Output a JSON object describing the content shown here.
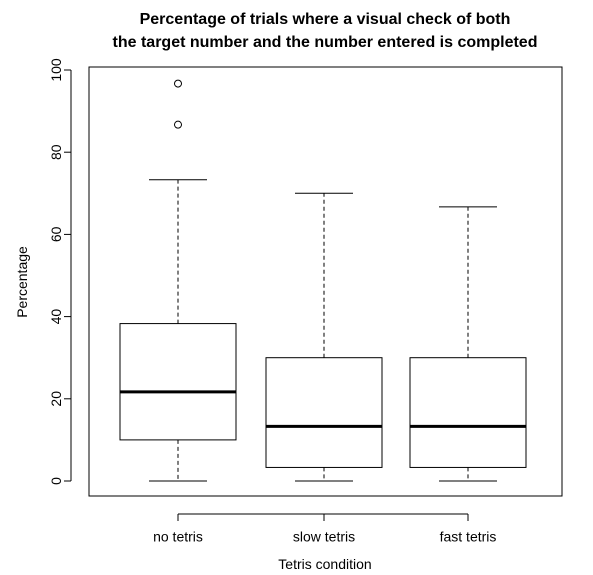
{
  "chart_data": {
    "type": "boxplot",
    "title": "Percentage of trials where a visual check of both the target number and the number entered is completed",
    "title_lines": [
      "Percentage of trials where a visual check of both",
      "the target number and the number entered is completed"
    ],
    "xlabel": "Tetris condition",
    "ylabel": "Percentage",
    "ylim": [
      0,
      100
    ],
    "yticks": [
      0,
      20,
      40,
      60,
      80,
      100
    ],
    "categories": [
      "no tetris",
      "slow tetris",
      "fast tetris"
    ],
    "series": [
      {
        "category": "no tetris",
        "min": 0,
        "q1": 10,
        "median": 21.7,
        "q3": 38.3,
        "max": 73.3,
        "outliers": [
          86.7,
          96.7
        ]
      },
      {
        "category": "slow tetris",
        "min": 0,
        "q1": 3.3,
        "median": 13.3,
        "q3": 30,
        "max": 70,
        "outliers": []
      },
      {
        "category": "fast tetris",
        "min": 0,
        "q1": 3.3,
        "median": 13.3,
        "q3": 30,
        "max": 66.7,
        "outliers": []
      }
    ],
    "grid": false,
    "legend": "none"
  }
}
